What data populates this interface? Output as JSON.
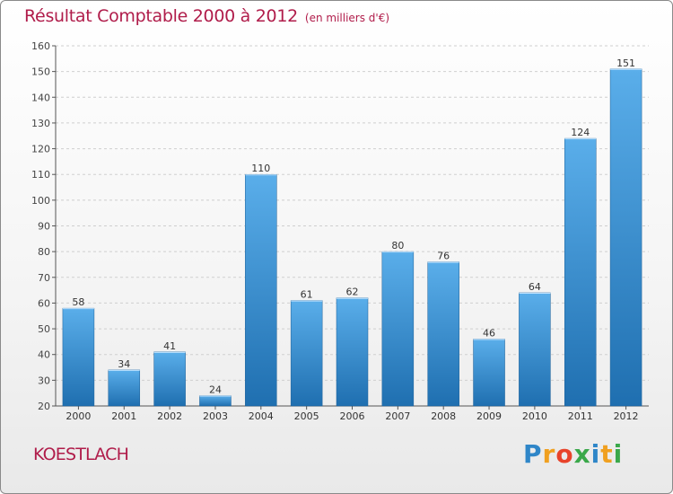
{
  "title": "Résultat Comptable 2000 à 2012",
  "subtitle": "(en milliers d'€)",
  "commune": "KOESTLACH",
  "brand": {
    "letters": [
      "P",
      "r",
      "o",
      "x",
      "i",
      "t",
      "i"
    ],
    "colors": [
      "#2f86c8",
      "#f0a020",
      "#e8432a",
      "#3aa84a",
      "#2f86c8",
      "#f0a020",
      "#3aa84a"
    ]
  },
  "colors": {
    "bar_light": "#5aaeea",
    "bar_dark": "#1f6fb0",
    "axis": "#555555",
    "grid": "#cfcfcf",
    "accent": "#b01c4a"
  },
  "chart_data": {
    "type": "bar",
    "title": "Résultat Comptable 2000 à 2012",
    "xlabel": "",
    "ylabel": "",
    "categories": [
      "2000",
      "2001",
      "2002",
      "2003",
      "2004",
      "2005",
      "2006",
      "2007",
      "2008",
      "2009",
      "2010",
      "2011",
      "2012"
    ],
    "values": [
      58,
      34,
      41,
      24,
      110,
      61,
      62,
      80,
      76,
      46,
      64,
      124,
      151
    ],
    "ylim": [
      20,
      160
    ],
    "yticks": [
      20,
      30,
      40,
      50,
      60,
      70,
      80,
      90,
      100,
      110,
      120,
      130,
      140,
      150,
      160
    ],
    "grid": true,
    "data_labels": true
  }
}
